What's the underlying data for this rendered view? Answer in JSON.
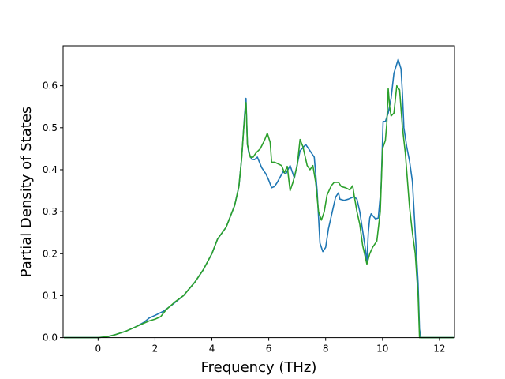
{
  "chart_data": {
    "type": "line",
    "title": "",
    "xlabel": "Frequency (THz)",
    "ylabel": "Partial Density of States",
    "xlim": [
      -1.23,
      12.53
    ],
    "ylim": [
      0.0,
      0.6953
    ],
    "xticks": [
      0,
      2,
      4,
      6,
      8,
      10,
      12
    ],
    "yticks": [
      0.0,
      0.1,
      0.2,
      0.3,
      0.4,
      0.5,
      0.6
    ],
    "xtick_labels": [
      "0",
      "2",
      "4",
      "6",
      "8",
      "10",
      "12"
    ],
    "ytick_labels": [
      "0.0",
      "0.1",
      "0.2",
      "0.3",
      "0.4",
      "0.5",
      "0.6"
    ],
    "grid": false,
    "legend": "none",
    "series": [
      {
        "color": "#1f77b4",
        "points": [
          [
            -1.2,
            0.0
          ],
          [
            0.0,
            0.0
          ],
          [
            0.3,
            0.002
          ],
          [
            0.6,
            0.007
          ],
          [
            1.0,
            0.016
          ],
          [
            1.3,
            0.025
          ],
          [
            1.6,
            0.036
          ],
          [
            1.8,
            0.047
          ],
          [
            2.0,
            0.053
          ],
          [
            2.3,
            0.063
          ],
          [
            2.6,
            0.078
          ],
          [
            3.0,
            0.1
          ],
          [
            3.4,
            0.132
          ],
          [
            3.7,
            0.162
          ],
          [
            4.0,
            0.2
          ],
          [
            4.2,
            0.235
          ],
          [
            4.5,
            0.263
          ],
          [
            4.8,
            0.315
          ],
          [
            4.95,
            0.36
          ],
          [
            5.05,
            0.43
          ],
          [
            5.15,
            0.53
          ],
          [
            5.2,
            0.57
          ],
          [
            5.25,
            0.46
          ],
          [
            5.3,
            0.44
          ],
          [
            5.4,
            0.425
          ],
          [
            5.5,
            0.424
          ],
          [
            5.6,
            0.43
          ],
          [
            5.75,
            0.405
          ],
          [
            5.9,
            0.39
          ],
          [
            6.0,
            0.375
          ],
          [
            6.1,
            0.357
          ],
          [
            6.2,
            0.36
          ],
          [
            6.3,
            0.37
          ],
          [
            6.5,
            0.395
          ],
          [
            6.6,
            0.39
          ],
          [
            6.75,
            0.41
          ],
          [
            6.9,
            0.38
          ],
          [
            7.1,
            0.445
          ],
          [
            7.3,
            0.46
          ],
          [
            7.5,
            0.44
          ],
          [
            7.6,
            0.43
          ],
          [
            7.7,
            0.35
          ],
          [
            7.8,
            0.225
          ],
          [
            7.9,
            0.205
          ],
          [
            8.0,
            0.215
          ],
          [
            8.1,
            0.26
          ],
          [
            8.25,
            0.305
          ],
          [
            8.35,
            0.335
          ],
          [
            8.45,
            0.345
          ],
          [
            8.5,
            0.33
          ],
          [
            8.65,
            0.327
          ],
          [
            8.8,
            0.33
          ],
          [
            9.0,
            0.336
          ],
          [
            9.1,
            0.33
          ],
          [
            9.2,
            0.3
          ],
          [
            9.3,
            0.255
          ],
          [
            9.4,
            0.21
          ],
          [
            9.45,
            0.18
          ],
          [
            9.5,
            0.25
          ],
          [
            9.55,
            0.285
          ],
          [
            9.6,
            0.295
          ],
          [
            9.75,
            0.283
          ],
          [
            9.85,
            0.285
          ],
          [
            9.95,
            0.36
          ],
          [
            10.0,
            0.47
          ],
          [
            10.02,
            0.515
          ],
          [
            10.1,
            0.515
          ],
          [
            10.2,
            0.535
          ],
          [
            10.3,
            0.57
          ],
          [
            10.4,
            0.63
          ],
          [
            10.55,
            0.663
          ],
          [
            10.65,
            0.64
          ],
          [
            10.7,
            0.58
          ],
          [
            10.75,
            0.5
          ],
          [
            10.85,
            0.455
          ],
          [
            10.95,
            0.42
          ],
          [
            11.05,
            0.372
          ],
          [
            11.15,
            0.25
          ],
          [
            11.25,
            0.13
          ],
          [
            11.3,
            0.02
          ],
          [
            11.35,
            0.0
          ],
          [
            12.5,
            0.0
          ]
        ]
      },
      {
        "color": "#2ca02c",
        "points": [
          [
            -1.2,
            0.0
          ],
          [
            0.0,
            0.0
          ],
          [
            0.3,
            0.002
          ],
          [
            0.6,
            0.007
          ],
          [
            1.0,
            0.016
          ],
          [
            1.3,
            0.025
          ],
          [
            1.6,
            0.034
          ],
          [
            1.8,
            0.04
          ],
          [
            2.0,
            0.044
          ],
          [
            2.2,
            0.05
          ],
          [
            2.4,
            0.067
          ],
          [
            2.7,
            0.085
          ],
          [
            3.0,
            0.1
          ],
          [
            3.4,
            0.132
          ],
          [
            3.7,
            0.162
          ],
          [
            4.0,
            0.2
          ],
          [
            4.2,
            0.235
          ],
          [
            4.5,
            0.263
          ],
          [
            4.8,
            0.315
          ],
          [
            4.95,
            0.36
          ],
          [
            5.05,
            0.43
          ],
          [
            5.12,
            0.5
          ],
          [
            5.2,
            0.56
          ],
          [
            5.25,
            0.46
          ],
          [
            5.35,
            0.43
          ],
          [
            5.45,
            0.43
          ],
          [
            5.55,
            0.44
          ],
          [
            5.7,
            0.45
          ],
          [
            5.85,
            0.47
          ],
          [
            5.95,
            0.487
          ],
          [
            6.05,
            0.465
          ],
          [
            6.1,
            0.418
          ],
          [
            6.2,
            0.418
          ],
          [
            6.3,
            0.415
          ],
          [
            6.45,
            0.41
          ],
          [
            6.55,
            0.393
          ],
          [
            6.65,
            0.408
          ],
          [
            6.75,
            0.35
          ],
          [
            6.85,
            0.37
          ],
          [
            7.0,
            0.41
          ],
          [
            7.1,
            0.472
          ],
          [
            7.2,
            0.455
          ],
          [
            7.35,
            0.41
          ],
          [
            7.45,
            0.4
          ],
          [
            7.55,
            0.41
          ],
          [
            7.65,
            0.37
          ],
          [
            7.75,
            0.3
          ],
          [
            7.85,
            0.28
          ],
          [
            7.95,
            0.3
          ],
          [
            8.05,
            0.34
          ],
          [
            8.2,
            0.362
          ],
          [
            8.3,
            0.37
          ],
          [
            8.45,
            0.37
          ],
          [
            8.55,
            0.36
          ],
          [
            8.7,
            0.357
          ],
          [
            8.85,
            0.352
          ],
          [
            8.95,
            0.362
          ],
          [
            9.0,
            0.34
          ],
          [
            9.1,
            0.3
          ],
          [
            9.2,
            0.27
          ],
          [
            9.3,
            0.22
          ],
          [
            9.45,
            0.175
          ],
          [
            9.55,
            0.2
          ],
          [
            9.65,
            0.215
          ],
          [
            9.8,
            0.23
          ],
          [
            9.92,
            0.3
          ],
          [
            10.0,
            0.45
          ],
          [
            10.1,
            0.47
          ],
          [
            10.15,
            0.51
          ],
          [
            10.2,
            0.593
          ],
          [
            10.25,
            0.55
          ],
          [
            10.3,
            0.528
          ],
          [
            10.4,
            0.535
          ],
          [
            10.5,
            0.6
          ],
          [
            10.6,
            0.59
          ],
          [
            10.7,
            0.5
          ],
          [
            10.8,
            0.44
          ],
          [
            10.95,
            0.31
          ],
          [
            11.05,
            0.25
          ],
          [
            11.15,
            0.2
          ],
          [
            11.25,
            0.1
          ],
          [
            11.3,
            0.0
          ],
          [
            12.5,
            0.0
          ]
        ]
      }
    ]
  }
}
